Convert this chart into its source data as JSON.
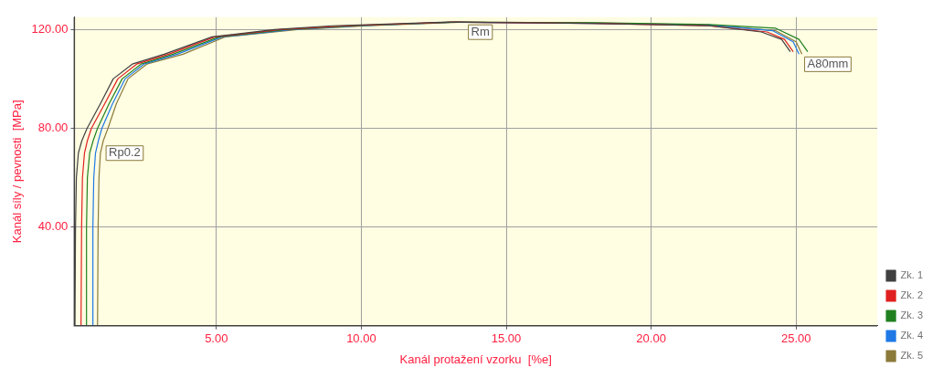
{
  "chart_data": {
    "type": "line",
    "xlabel": "Kanál protažení vzorku  [%e]",
    "ylabel": "Kanál síly / pevnosti  [MPa]",
    "xlim": [
      0.1,
      27.8
    ],
    "ylim": [
      0,
      125
    ],
    "xticks": [
      {
        "value": 5,
        "label": "5.00"
      },
      {
        "value": 10,
        "label": "10.00"
      },
      {
        "value": 15,
        "label": "15.00"
      },
      {
        "value": 20,
        "label": "20.00"
      },
      {
        "value": 25,
        "label": "25.00"
      }
    ],
    "yticks": [
      {
        "value": 40,
        "label": "40.00"
      },
      {
        "value": 80,
        "label": "80.00"
      },
      {
        "value": 120,
        "label": "120.00"
      }
    ],
    "grid": true,
    "legend": "bottom right",
    "line_style": "solid",
    "series": [
      {
        "name": "Zk. 1",
        "color": "#404040",
        "x": [
          0.12,
          0.14,
          0.17,
          0.24,
          0.36,
          0.54,
          1.0,
          1.44,
          2.1,
          3.2,
          4.85,
          7,
          9,
          13,
          18,
          22,
          23.8,
          24.5,
          24.8
        ],
        "values": [
          0,
          40,
          60,
          70,
          75,
          80,
          90,
          100,
          106,
          110,
          117,
          120,
          121.5,
          123,
          122.5,
          121.5,
          119,
          116,
          111
        ]
      },
      {
        "name": "Zk. 2",
        "color": "#e02020",
        "x": [
          0.33,
          0.35,
          0.38,
          0.45,
          0.55,
          0.69,
          1.15,
          1.6,
          2.25,
          3.35,
          4.95,
          7.2,
          9.5,
          13.2,
          18,
          22,
          24,
          24.6,
          24.9
        ],
        "values": [
          0,
          40,
          60,
          70,
          75,
          80,
          90,
          100,
          106,
          110,
          117,
          120,
          121.5,
          123,
          122.5,
          121.5,
          119,
          116,
          111
        ]
      },
      {
        "name": "Zk. 3",
        "color": "#208020",
        "x": [
          0.5,
          0.52,
          0.55,
          0.63,
          0.75,
          0.9,
          1.3,
          1.75,
          2.4,
          3.5,
          5.1,
          7.4,
          9.8,
          13.3,
          18,
          22,
          24.3,
          25.1,
          25.4
        ],
        "values": [
          0,
          40,
          60,
          70,
          75,
          80,
          90,
          100,
          106,
          110,
          117,
          120,
          121.5,
          123,
          122.8,
          122,
          120.5,
          116,
          111
        ]
      },
      {
        "name": "Zk. 4",
        "color": "#1e78e6",
        "x": [
          0.72,
          0.74,
          0.77,
          0.83,
          0.93,
          1.05,
          1.42,
          1.85,
          2.5,
          3.65,
          5.2,
          7.6,
          10,
          13.3,
          18,
          22,
          24.2,
          24.9,
          25.1
        ],
        "values": [
          0,
          40,
          60,
          70,
          75,
          80,
          90,
          100,
          106,
          110,
          117,
          120,
          121.5,
          123,
          122.5,
          121.8,
          119.5,
          115,
          110
        ]
      },
      {
        "name": "Zk. 5",
        "color": "#8b7a3a",
        "x": [
          0.9,
          0.92,
          0.95,
          1.0,
          1.1,
          1.26,
          1.55,
          1.95,
          2.6,
          3.85,
          5.3,
          7.8,
          10.2,
          13.6,
          18,
          22,
          24.3,
          25.0,
          25.2
        ],
        "values": [
          0,
          40,
          60,
          70,
          75,
          80,
          90,
          100,
          106,
          110,
          117,
          120,
          121.5,
          123,
          122.7,
          121.8,
          119.5,
          115,
          110
        ]
      }
    ],
    "annotations": [
      {
        "text": "Rp0.2",
        "x": 1.1,
        "y": 74
      },
      {
        "text": "Rm",
        "x": 13.6,
        "y": 123
      },
      {
        "text": "A80mm",
        "x": 25.2,
        "y": 110
      }
    ]
  }
}
